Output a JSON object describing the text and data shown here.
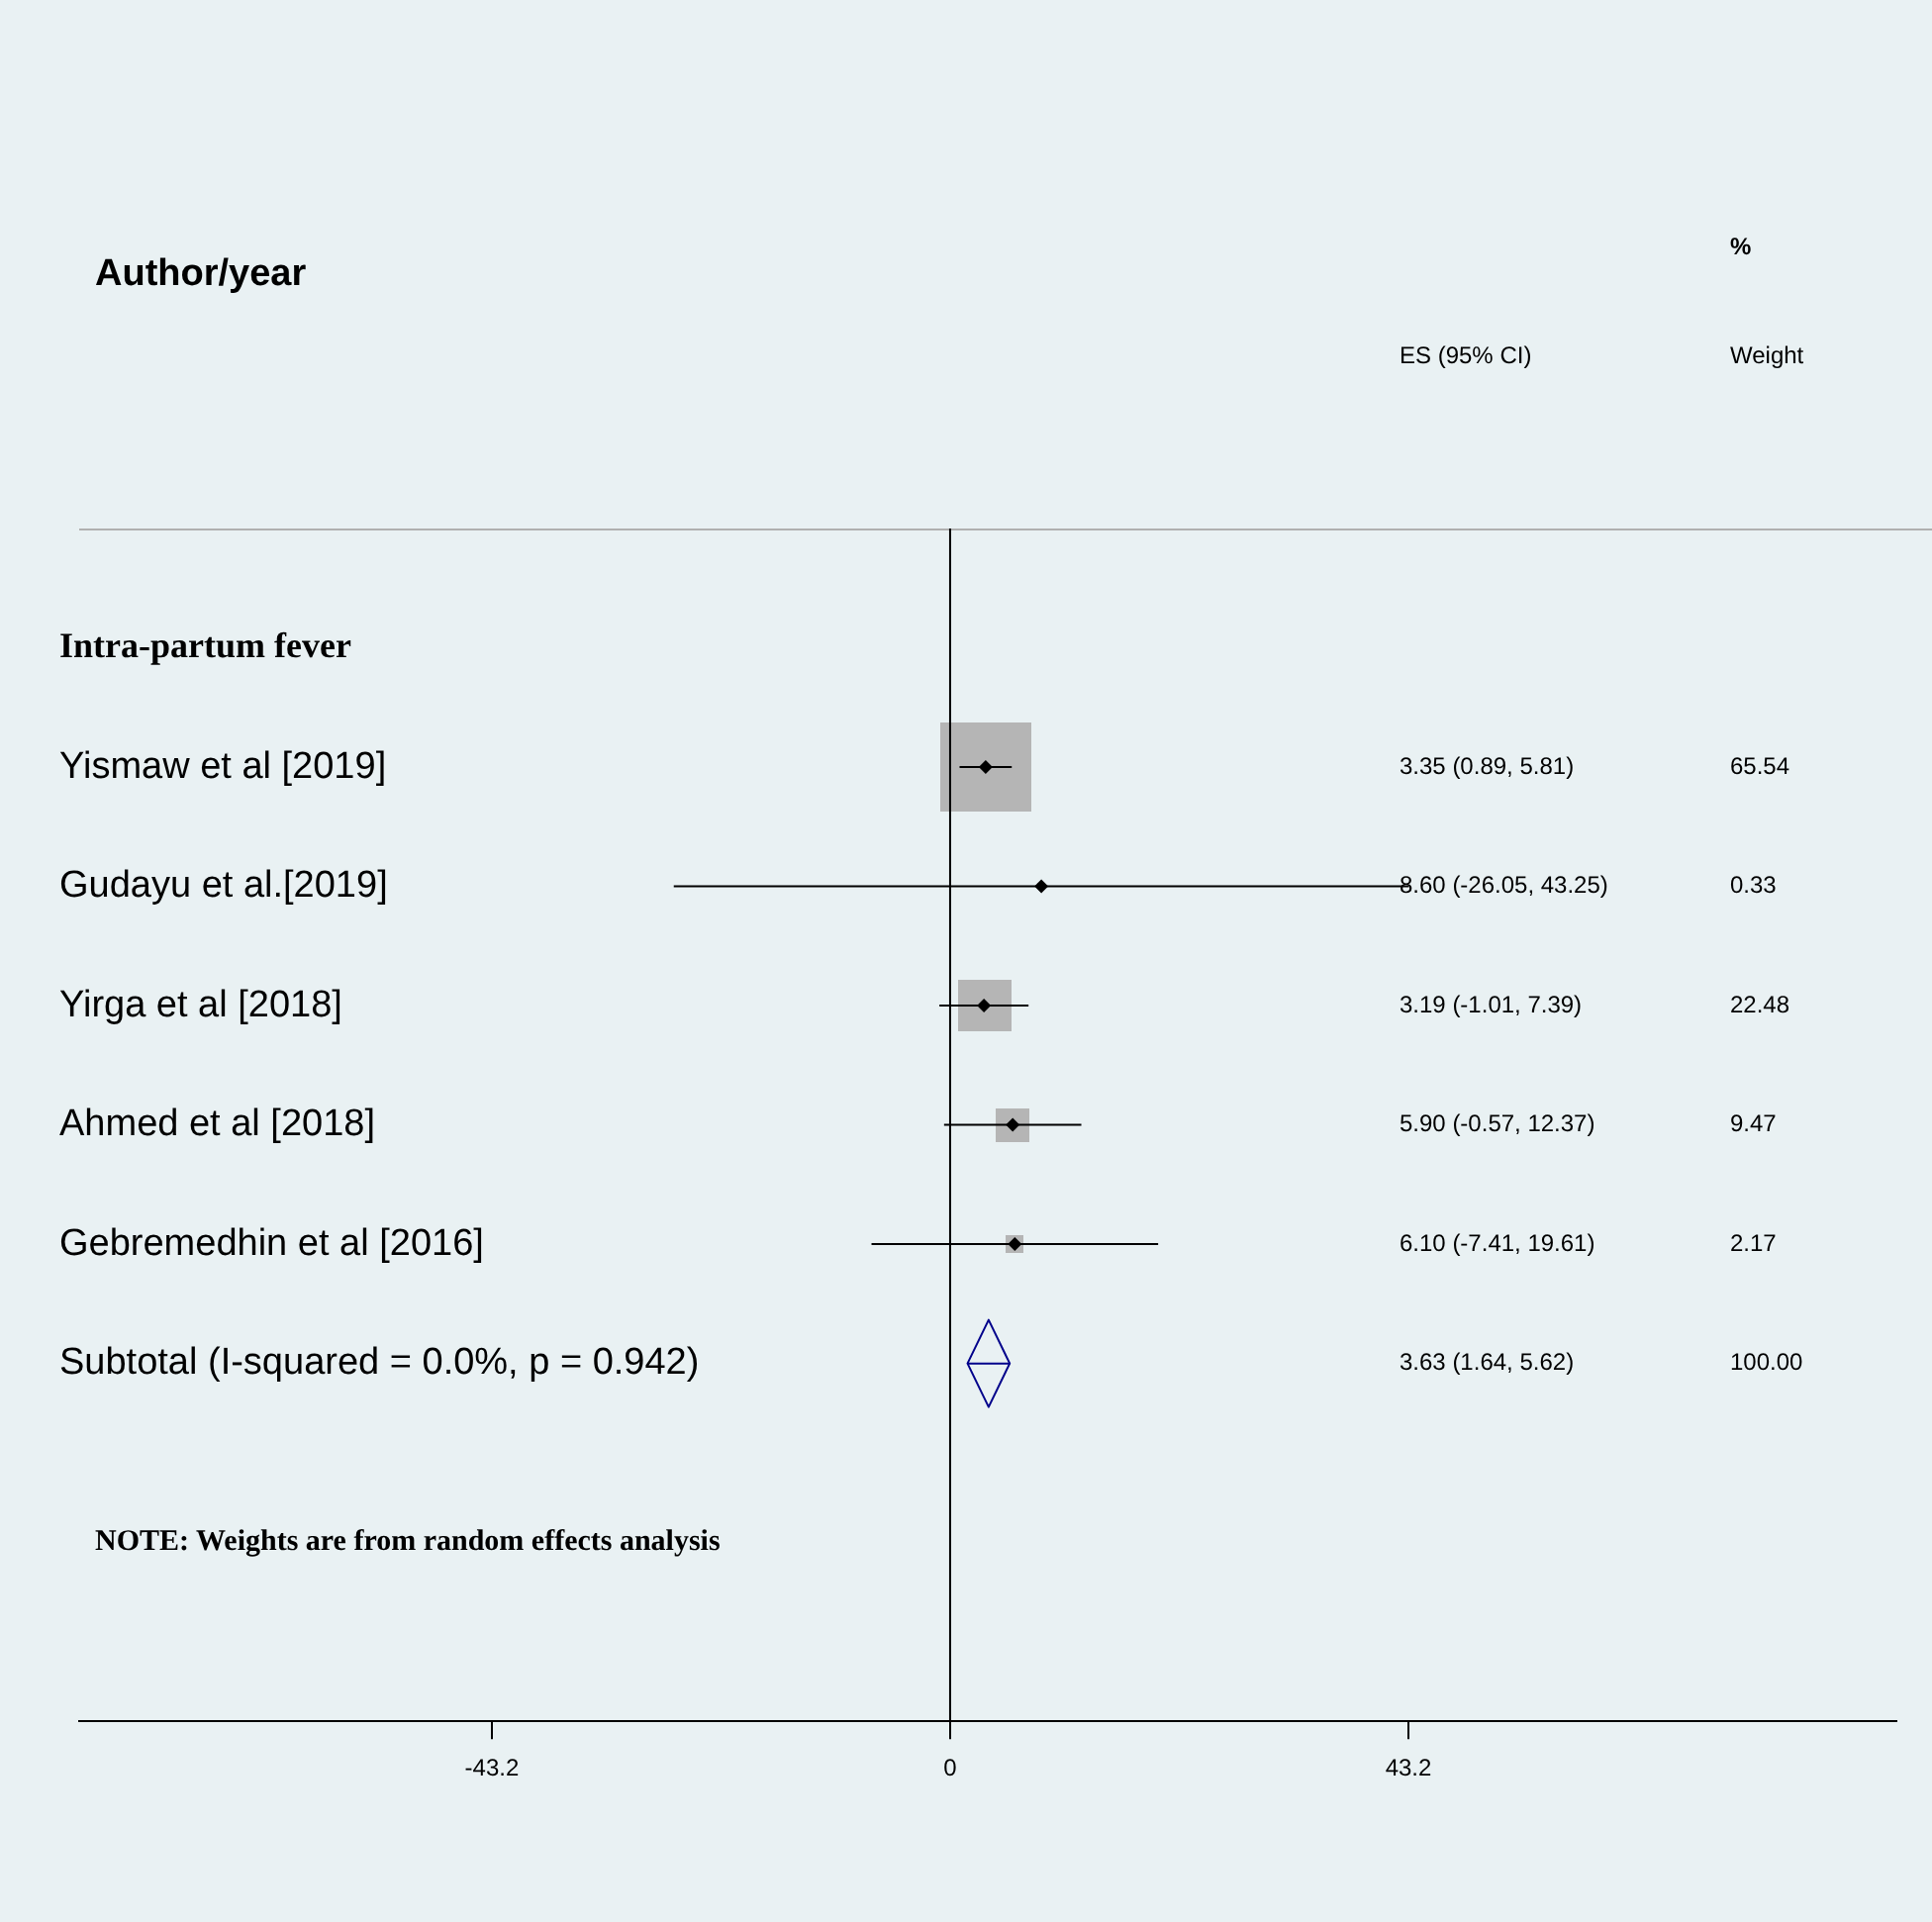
{
  "chart_data": {
    "type": "scatter",
    "orientation": "horizontal",
    "title": "Author/year",
    "categories": [
      null,
      "Intra-partum fever",
      "Yismaw et al [2019]",
      "Gudayu et al.[2019]",
      "Yirga et al [2018]",
      "Ahmed et al [2018]",
      "Gebremedhin et al [2016]",
      "Subtotal (I-squared = 0.0%, p = 0.942)",
      null,
      null,
      null
    ],
    "series": [
      {
        "color": "#000000",
        "marker": "diamond",
        "values": [
          null,
          null,
          3.35,
          8.6,
          3.19,
          5.9,
          6.1,
          null,
          null,
          null,
          null
        ],
        "errors": [
          null,
          null,
          [
            0.89,
            5.81
          ],
          [
            -26.05,
            43.25
          ],
          [
            -1.01,
            7.39
          ],
          [
            -0.57,
            12.37
          ],
          [
            -7.41,
            19.61
          ],
          null,
          null,
          null,
          null
        ]
      },
      {
        "color": "#00008b",
        "marker": "diamond",
        "values": [
          null,
          null,
          null,
          null,
          null,
          null,
          null,
          3.63,
          null,
          null,
          null
        ],
        "errors": [
          null,
          null,
          null,
          null,
          null,
          null,
          null,
          [
            1.64,
            5.62
          ],
          null,
          null,
          null
        ]
      }
    ],
    "xlim": [
      -82.1,
      89.2
    ],
    "xticks": [
      -43.2,
      0,
      43.2
    ],
    "ref_lines": [
      {
        "axis": "x",
        "value": 0,
        "color": "#000000"
      }
    ],
    "annotations": [
      "%",
      "ES (95% CI)",
      "Weight",
      "65.54",
      "0.33",
      "22.48",
      "9.47",
      "2.17",
      "100.00",
      "NOTE: Weights are from random effects analysis",
      "3.35 (0.89, 5.81)",
      "8.60 (-26.05, 43.25)",
      "3.19 (-1.01, 7.39)",
      "5.90 (-0.57, 12.37)",
      "6.10 (-7.41, 19.61)",
      "3.63 (1.64, 5.62)"
    ],
    "tick_labels": "x",
    "grid": false,
    "legend": false
  }
}
